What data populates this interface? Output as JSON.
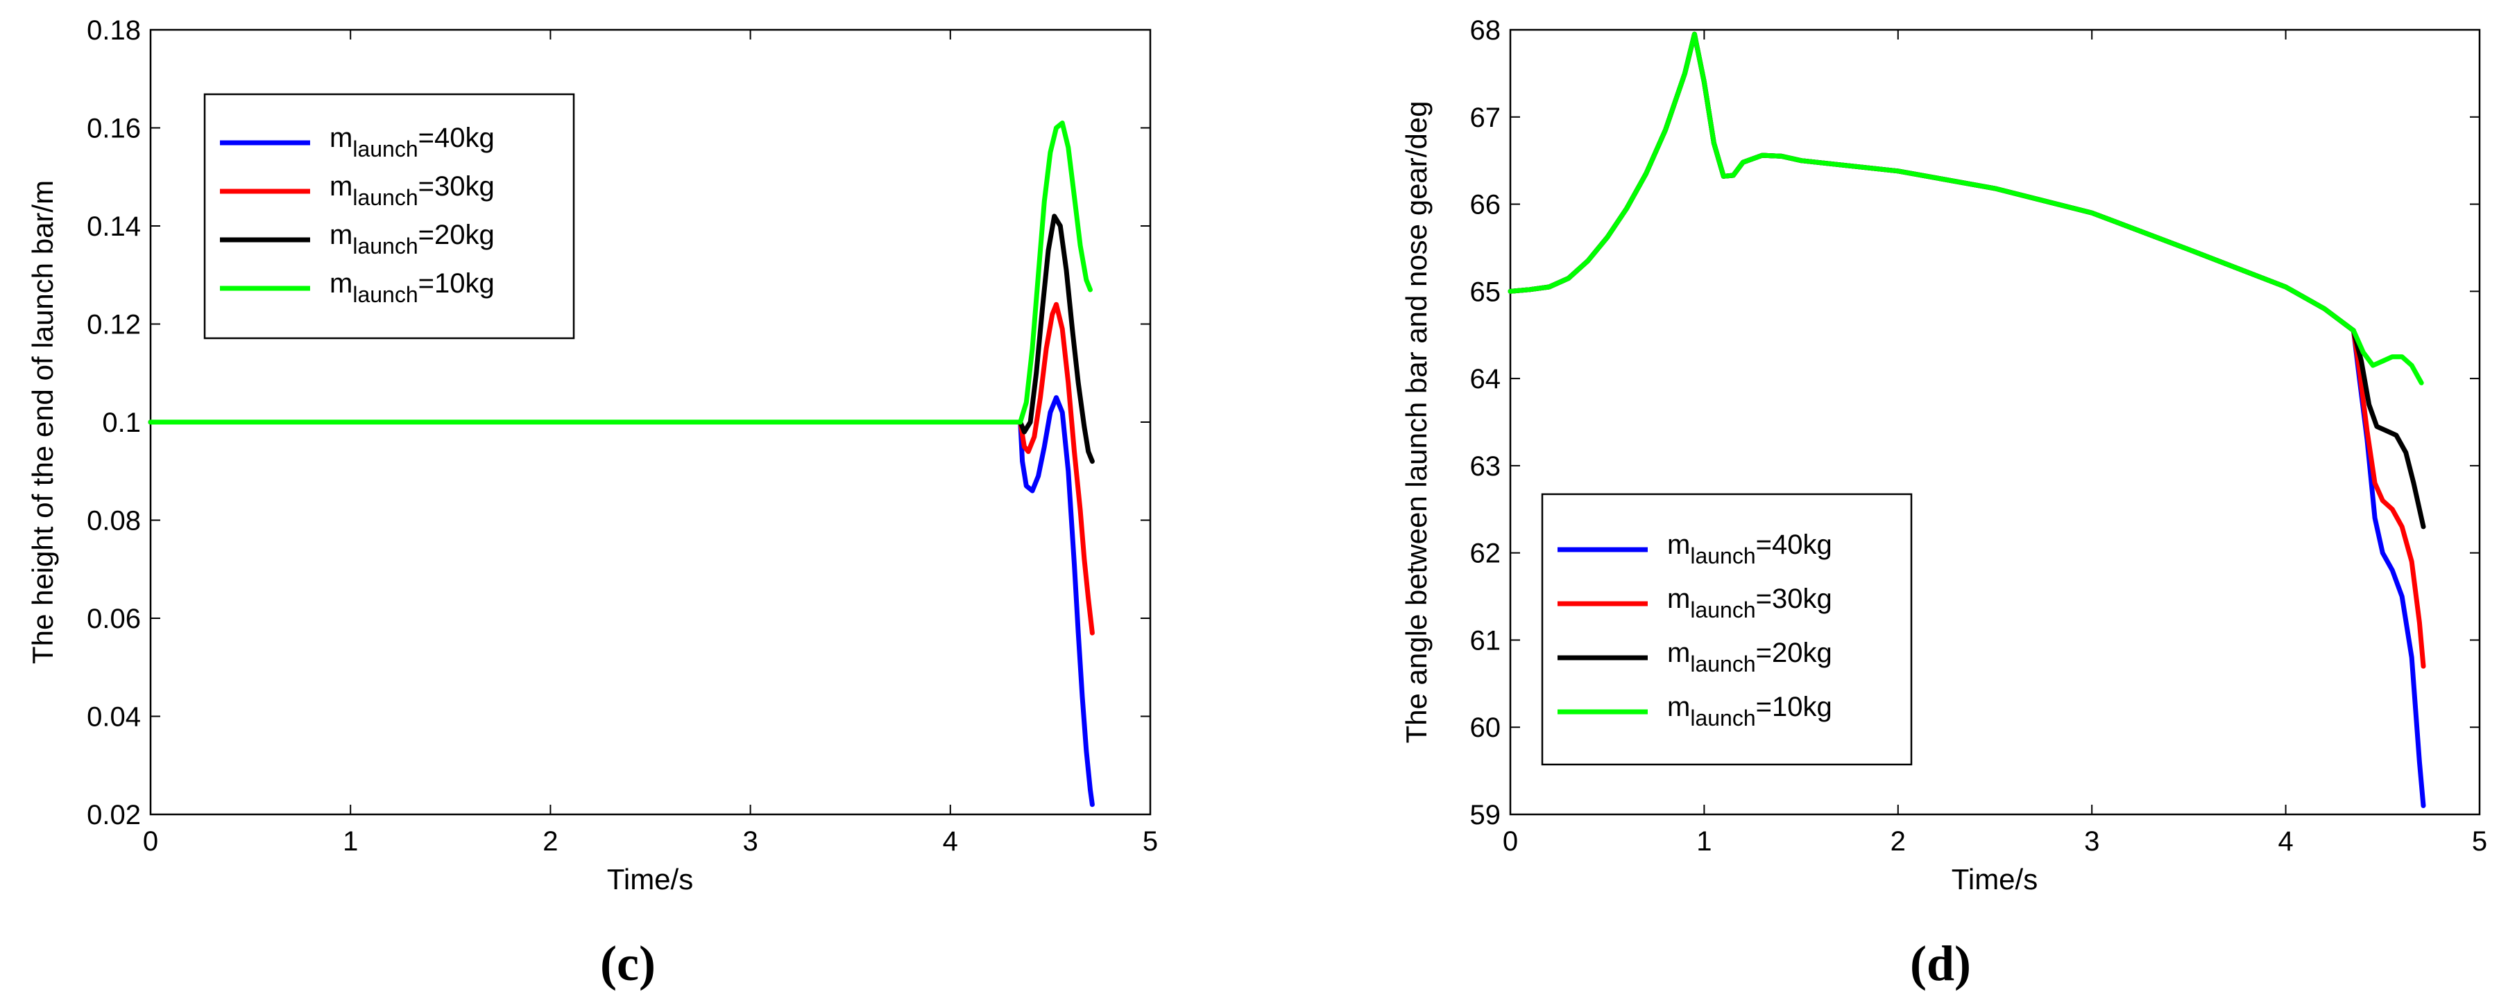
{
  "chart_data": [
    {
      "type": "line",
      "panel_label": "(c)",
      "xlabel": "Time/s",
      "ylabel": "The height of the end of launch bar/m",
      "xlim": [
        0,
        5
      ],
      "ylim": [
        0.02,
        0.18
      ],
      "xticks": [
        "0",
        "1",
        "2",
        "3",
        "4",
        "5"
      ],
      "yticks": [
        "0.02",
        "0.04",
        "0.06",
        "0.08",
        "0.1",
        "0.12",
        "0.14",
        "0.16",
        "0.18"
      ],
      "legend_position": "top-left",
      "series": [
        {
          "name": "40kg",
          "color": "#0000ff",
          "points": [
            [
              0,
              0.1
            ],
            [
              4.35,
              0.1
            ],
            [
              4.36,
              0.092
            ],
            [
              4.38,
              0.087
            ],
            [
              4.41,
              0.086
            ],
            [
              4.44,
              0.089
            ],
            [
              4.47,
              0.095
            ],
            [
              4.5,
              0.102
            ],
            [
              4.53,
              0.105
            ],
            [
              4.56,
              0.102
            ],
            [
              4.59,
              0.09
            ],
            [
              4.62,
              0.071
            ],
            [
              4.64,
              0.057
            ],
            [
              4.66,
              0.044
            ],
            [
              4.68,
              0.033
            ],
            [
              4.7,
              0.025
            ],
            [
              4.71,
              0.022
            ]
          ]
        },
        {
          "name": "30kg",
          "color": "#ff0000",
          "points": [
            [
              0,
              0.1
            ],
            [
              4.35,
              0.1
            ],
            [
              4.37,
              0.095
            ],
            [
              4.39,
              0.094
            ],
            [
              4.42,
              0.097
            ],
            [
              4.45,
              0.105
            ],
            [
              4.48,
              0.115
            ],
            [
              4.51,
              0.122
            ],
            [
              4.53,
              0.124
            ],
            [
              4.56,
              0.119
            ],
            [
              4.59,
              0.108
            ],
            [
              4.62,
              0.094
            ],
            [
              4.65,
              0.082
            ],
            [
              4.67,
              0.072
            ],
            [
              4.69,
              0.064
            ],
            [
              4.71,
              0.057
            ]
          ]
        },
        {
          "name": "20kg",
          "color": "#000000",
          "points": [
            [
              0,
              0.1
            ],
            [
              4.35,
              0.1
            ],
            [
              4.37,
              0.098
            ],
            [
              4.4,
              0.1
            ],
            [
              4.43,
              0.11
            ],
            [
              4.46,
              0.123
            ],
            [
              4.49,
              0.135
            ],
            [
              4.52,
              0.142
            ],
            [
              4.55,
              0.14
            ],
            [
              4.58,
              0.131
            ],
            [
              4.61,
              0.119
            ],
            [
              4.64,
              0.108
            ],
            [
              4.67,
              0.099
            ],
            [
              4.69,
              0.094
            ],
            [
              4.71,
              0.092
            ]
          ]
        },
        {
          "name": "10kg",
          "color": "#00ff00",
          "points": [
            [
              0,
              0.1
            ],
            [
              4.35,
              0.1
            ],
            [
              4.38,
              0.104
            ],
            [
              4.41,
              0.115
            ],
            [
              4.44,
              0.13
            ],
            [
              4.47,
              0.145
            ],
            [
              4.5,
              0.155
            ],
            [
              4.53,
              0.16
            ],
            [
              4.56,
              0.161
            ],
            [
              4.59,
              0.156
            ],
            [
              4.62,
              0.146
            ],
            [
              4.65,
              0.136
            ],
            [
              4.68,
              0.129
            ],
            [
              4.7,
              0.127
            ]
          ]
        }
      ]
    },
    {
      "type": "line",
      "panel_label": "(d)",
      "xlabel": "Time/s",
      "ylabel": "The angle between launch bar and nose gear/deg",
      "xlim": [
        0,
        5
      ],
      "ylim": [
        59,
        68
      ],
      "xticks": [
        "0",
        "1",
        "2",
        "3",
        "4",
        "5"
      ],
      "yticks": [
        "59",
        "60",
        "61",
        "62",
        "63",
        "64",
        "65",
        "66",
        "67",
        "68"
      ],
      "legend_position": "bottom-left",
      "series": [
        {
          "name": "40kg",
          "color": "#0000ff",
          "points": [
            [
              0,
              65.0
            ],
            [
              0.1,
              65.02
            ],
            [
              0.2,
              65.05
            ],
            [
              0.3,
              65.15
            ],
            [
              0.4,
              65.35
            ],
            [
              0.5,
              65.62
            ],
            [
              0.6,
              65.95
            ],
            [
              0.7,
              66.35
            ],
            [
              0.8,
              66.85
            ],
            [
              0.9,
              67.5
            ],
            [
              0.95,
              67.95
            ],
            [
              1.0,
              67.4
            ],
            [
              1.05,
              66.7
            ],
            [
              1.1,
              66.32
            ],
            [
              1.15,
              66.33
            ],
            [
              1.2,
              66.48
            ],
            [
              1.3,
              66.56
            ],
            [
              1.4,
              66.55
            ],
            [
              1.5,
              66.5
            ],
            [
              2.0,
              66.38
            ],
            [
              2.5,
              66.18
            ],
            [
              3.0,
              65.9
            ],
            [
              3.5,
              65.48
            ],
            [
              4.0,
              65.05
            ],
            [
              4.2,
              64.8
            ],
            [
              4.35,
              64.55
            ],
            [
              4.38,
              64.0
            ],
            [
              4.42,
              63.3
            ],
            [
              4.46,
              62.4
            ],
            [
              4.5,
              62.0
            ],
            [
              4.55,
              61.8
            ],
            [
              4.6,
              61.5
            ],
            [
              4.65,
              60.8
            ],
            [
              4.69,
              59.6
            ],
            [
              4.71,
              59.1
            ]
          ]
        },
        {
          "name": "30kg",
          "color": "#ff0000",
          "points": [
            [
              0,
              65.0
            ],
            [
              0.1,
              65.02
            ],
            [
              0.2,
              65.05
            ],
            [
              0.3,
              65.15
            ],
            [
              0.4,
              65.35
            ],
            [
              0.5,
              65.62
            ],
            [
              0.6,
              65.95
            ],
            [
              0.7,
              66.35
            ],
            [
              0.8,
              66.85
            ],
            [
              0.9,
              67.5
            ],
            [
              0.95,
              67.95
            ],
            [
              1.0,
              67.4
            ],
            [
              1.05,
              66.7
            ],
            [
              1.1,
              66.32
            ],
            [
              1.15,
              66.33
            ],
            [
              1.2,
              66.48
            ],
            [
              1.3,
              66.56
            ],
            [
              1.4,
              66.55
            ],
            [
              1.5,
              66.5
            ],
            [
              2.0,
              66.38
            ],
            [
              2.5,
              66.18
            ],
            [
              3.0,
              65.9
            ],
            [
              3.5,
              65.48
            ],
            [
              4.0,
              65.05
            ],
            [
              4.2,
              64.8
            ],
            [
              4.35,
              64.55
            ],
            [
              4.38,
              64.1
            ],
            [
              4.42,
              63.4
            ],
            [
              4.46,
              62.8
            ],
            [
              4.5,
              62.6
            ],
            [
              4.55,
              62.5
            ],
            [
              4.6,
              62.3
            ],
            [
              4.65,
              61.9
            ],
            [
              4.69,
              61.2
            ],
            [
              4.71,
              60.7
            ]
          ]
        },
        {
          "name": "20kg",
          "color": "#000000",
          "points": [
            [
              0,
              65.0
            ],
            [
              0.1,
              65.02
            ],
            [
              0.2,
              65.05
            ],
            [
              0.3,
              65.15
            ],
            [
              0.4,
              65.35
            ],
            [
              0.5,
              65.62
            ],
            [
              0.6,
              65.95
            ],
            [
              0.7,
              66.35
            ],
            [
              0.8,
              66.85
            ],
            [
              0.9,
              67.5
            ],
            [
              0.95,
              67.95
            ],
            [
              1.0,
              67.4
            ],
            [
              1.05,
              66.7
            ],
            [
              1.1,
              66.32
            ],
            [
              1.15,
              66.33
            ],
            [
              1.2,
              66.48
            ],
            [
              1.3,
              66.56
            ],
            [
              1.4,
              66.55
            ],
            [
              1.5,
              66.5
            ],
            [
              2.0,
              66.38
            ],
            [
              2.5,
              66.18
            ],
            [
              3.0,
              65.9
            ],
            [
              3.5,
              65.48
            ],
            [
              4.0,
              65.05
            ],
            [
              4.2,
              64.8
            ],
            [
              4.35,
              64.55
            ],
            [
              4.39,
              64.2
            ],
            [
              4.43,
              63.7
            ],
            [
              4.47,
              63.45
            ],
            [
              4.52,
              63.4
            ],
            [
              4.57,
              63.35
            ],
            [
              4.62,
              63.15
            ],
            [
              4.66,
              62.8
            ],
            [
              4.69,
              62.5
            ],
            [
              4.71,
              62.3
            ]
          ]
        },
        {
          "name": "10kg",
          "color": "#00ff00",
          "points": [
            [
              0,
              65.0
            ],
            [
              0.1,
              65.02
            ],
            [
              0.2,
              65.05
            ],
            [
              0.3,
              65.15
            ],
            [
              0.4,
              65.35
            ],
            [
              0.5,
              65.62
            ],
            [
              0.6,
              65.95
            ],
            [
              0.7,
              66.35
            ],
            [
              0.8,
              66.85
            ],
            [
              0.9,
              67.5
            ],
            [
              0.95,
              67.95
            ],
            [
              1.0,
              67.4
            ],
            [
              1.05,
              66.7
            ],
            [
              1.1,
              66.32
            ],
            [
              1.15,
              66.33
            ],
            [
              1.2,
              66.48
            ],
            [
              1.3,
              66.56
            ],
            [
              1.4,
              66.55
            ],
            [
              1.5,
              66.5
            ],
            [
              2.0,
              66.38
            ],
            [
              2.5,
              66.18
            ],
            [
              3.0,
              65.9
            ],
            [
              3.5,
              65.48
            ],
            [
              4.0,
              65.05
            ],
            [
              4.2,
              64.8
            ],
            [
              4.35,
              64.55
            ],
            [
              4.4,
              64.3
            ],
            [
              4.45,
              64.15
            ],
            [
              4.5,
              64.2
            ],
            [
              4.55,
              64.25
            ],
            [
              4.6,
              64.25
            ],
            [
              4.65,
              64.15
            ],
            [
              4.7,
              63.95
            ]
          ]
        }
      ]
    }
  ],
  "legend": {
    "prefix": "m",
    "subscript": "launch",
    "equals": "="
  }
}
